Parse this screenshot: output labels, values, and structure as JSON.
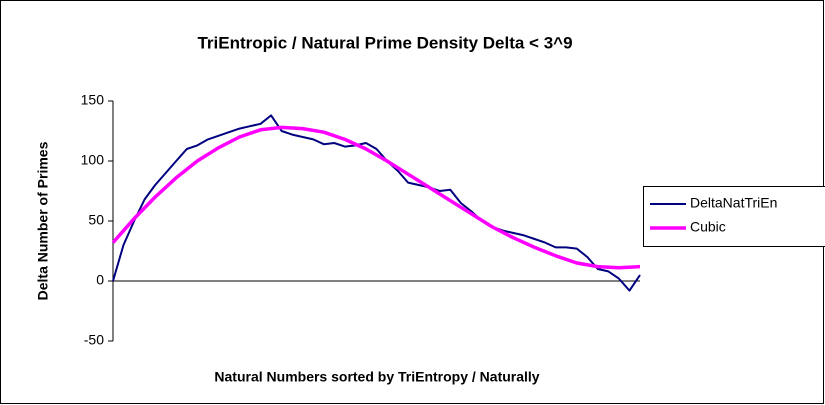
{
  "chart_data": {
    "type": "line",
    "title": "TriEntropic / Natural Prime Density Delta < 3^9",
    "x_label": "Natural Numbers sorted by TriEntropy / Naturally",
    "y_label": "Delta Number of Primes",
    "ylim": [
      -50,
      150
    ],
    "yticks": [
      -50,
      0,
      50,
      100,
      150
    ],
    "grid": false,
    "legend": "right",
    "series": [
      {
        "name": "DeltaNatTriEn",
        "color": "#000080",
        "values": [
          0,
          30,
          50,
          68,
          80,
          90,
          100,
          110,
          113,
          118,
          121,
          124,
          127,
          129,
          131,
          138,
          125,
          122,
          120,
          118,
          114,
          115,
          112,
          113,
          115,
          110,
          100,
          92,
          82,
          80,
          78,
          75,
          76,
          65,
          58,
          50,
          45,
          42,
          40,
          38,
          35,
          32,
          28,
          28,
          27,
          20,
          10,
          8,
          2,
          -8,
          5
        ]
      },
      {
        "name": "Cubic",
        "color": "#ff00ff",
        "values": [
          32,
          52,
          70,
          86,
          100,
          111,
          120,
          126,
          128,
          127,
          124,
          118,
          110,
          100,
          89,
          78,
          67,
          56,
          45,
          36,
          28,
          21,
          15,
          12,
          11,
          12
        ]
      }
    ]
  }
}
